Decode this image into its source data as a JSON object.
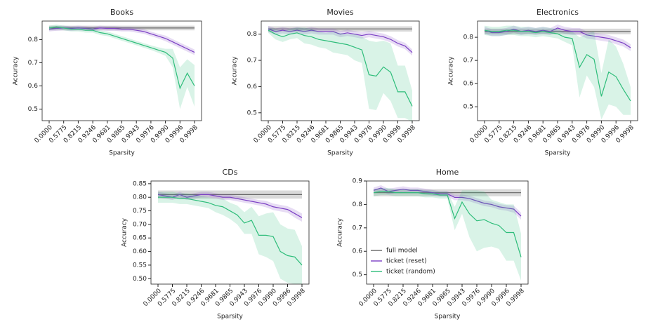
{
  "chart_data": [
    {
      "type": "line",
      "title": "Books",
      "xlabel": "Sparsity",
      "ylabel": "Accuracy",
      "categories": [
        "0.0000",
        null,
        "0.5775",
        null,
        "0.8215",
        null,
        "0.9246",
        null,
        "0.9681",
        null,
        "0.9865",
        null,
        "0.9943",
        null,
        "0.9976",
        null,
        "0.9990",
        null,
        "0.9996",
        null,
        "0.9998"
      ],
      "ylim": [
        0.45,
        0.88
      ],
      "yticks": [
        0.5,
        0.6,
        0.7,
        0.8
      ],
      "series": [
        {
          "color": "#666666",
          "values": [
            0.85,
            0.85,
            0.85,
            0.85,
            0.85,
            0.85,
            0.85,
            0.85,
            0.85,
            0.85,
            0.85,
            0.85,
            0.85,
            0.85,
            0.85,
            0.85,
            0.85,
            0.85,
            0.85,
            0.85,
            0.85
          ],
          "error": [
            0.01,
            0.01,
            0.01,
            0.01,
            0.01,
            0.01,
            0.01,
            0.01,
            0.01,
            0.01,
            0.01,
            0.01,
            0.01,
            0.01,
            0.01,
            0.01,
            0.01,
            0.01,
            0.01,
            0.01,
            0.01
          ]
        },
        {
          "color": "#7b3fc4",
          "values": [
            0.845,
            0.848,
            0.85,
            0.848,
            0.85,
            0.848,
            0.845,
            0.85,
            0.848,
            0.848,
            0.845,
            0.845,
            0.84,
            0.835,
            0.825,
            0.815,
            0.805,
            0.79,
            0.775,
            0.76,
            0.745
          ],
          "error": [
            0.01,
            0.01,
            0.01,
            0.01,
            0.01,
            0.01,
            0.01,
            0.01,
            0.01,
            0.01,
            0.01,
            0.01,
            0.01,
            0.01,
            0.01,
            0.01,
            0.012,
            0.012,
            0.012,
            0.012,
            0.012
          ]
        },
        {
          "color": "#2ebd7a",
          "values": [
            0.85,
            0.855,
            0.85,
            0.845,
            0.845,
            0.84,
            0.84,
            0.83,
            0.825,
            0.815,
            0.805,
            0.795,
            0.785,
            0.775,
            0.765,
            0.755,
            0.745,
            0.72,
            0.59,
            0.655,
            0.6
          ],
          "error": [
            0.01,
            0.01,
            0.01,
            0.01,
            0.01,
            0.01,
            0.01,
            0.01,
            0.01,
            0.01,
            0.01,
            0.01,
            0.01,
            0.01,
            0.01,
            0.012,
            0.015,
            0.04,
            0.09,
            0.06,
            0.09
          ]
        }
      ]
    },
    {
      "type": "line",
      "title": "Movies",
      "xlabel": "Sparsity",
      "ylabel": "Accuracy",
      "categories": [
        "0.0000",
        null,
        "0.5775",
        null,
        "0.8215",
        null,
        "0.9246",
        null,
        "0.9681",
        null,
        "0.9865",
        null,
        "0.9943",
        null,
        "0.9976",
        null,
        "0.9990",
        null,
        "0.9996",
        null,
        "0.9998"
      ],
      "ylim": [
        0.47,
        0.85
      ],
      "yticks": [
        0.5,
        0.6,
        0.7,
        0.8
      ],
      "series": [
        {
          "color": "#666666",
          "values": [
            0.82,
            0.82,
            0.82,
            0.82,
            0.82,
            0.82,
            0.82,
            0.82,
            0.82,
            0.82,
            0.82,
            0.82,
            0.82,
            0.82,
            0.82,
            0.82,
            0.82,
            0.82,
            0.82,
            0.82,
            0.82
          ],
          "error": [
            0.01,
            0.01,
            0.01,
            0.01,
            0.01,
            0.01,
            0.01,
            0.01,
            0.01,
            0.01,
            0.01,
            0.01,
            0.01,
            0.01,
            0.01,
            0.01,
            0.01,
            0.01,
            0.01,
            0.01,
            0.01
          ]
        },
        {
          "color": "#7b3fc4",
          "values": [
            0.82,
            0.81,
            0.815,
            0.81,
            0.815,
            0.81,
            0.815,
            0.81,
            0.81,
            0.81,
            0.8,
            0.805,
            0.8,
            0.795,
            0.8,
            0.795,
            0.79,
            0.78,
            0.765,
            0.755,
            0.73
          ],
          "error": [
            0.012,
            0.012,
            0.012,
            0.012,
            0.012,
            0.012,
            0.012,
            0.012,
            0.012,
            0.012,
            0.012,
            0.012,
            0.012,
            0.012,
            0.012,
            0.012,
            0.012,
            0.012,
            0.012,
            0.012,
            0.012
          ]
        },
        {
          "color": "#2ebd7a",
          "values": [
            0.815,
            0.8,
            0.79,
            0.8,
            0.805,
            0.795,
            0.79,
            0.78,
            0.775,
            0.77,
            0.765,
            0.76,
            0.75,
            0.74,
            0.645,
            0.64,
            0.675,
            0.655,
            0.58,
            0.58,
            0.525
          ],
          "error": [
            0.01,
            0.02,
            0.02,
            0.02,
            0.02,
            0.03,
            0.03,
            0.03,
            0.03,
            0.04,
            0.04,
            0.04,
            0.05,
            0.05,
            0.13,
            0.13,
            0.1,
            0.11,
            0.1,
            0.1,
            0.06
          ]
        }
      ]
    },
    {
      "type": "line",
      "title": "Electronics",
      "xlabel": "Sparsity",
      "ylabel": "Accuracy",
      "categories": [
        "0.0000",
        null,
        "0.5775",
        null,
        "0.8215",
        null,
        "0.9246",
        null,
        "0.9681",
        null,
        "0.9865",
        null,
        "0.9943",
        null,
        "0.9976",
        null,
        "0.9990",
        null,
        "0.9996",
        null,
        "0.9998"
      ],
      "ylim": [
        0.44,
        0.87
      ],
      "yticks": [
        0.5,
        0.6,
        0.7,
        0.8
      ],
      "series": [
        {
          "color": "#666666",
          "values": [
            0.825,
            0.825,
            0.825,
            0.825,
            0.825,
            0.825,
            0.825,
            0.825,
            0.825,
            0.825,
            0.825,
            0.825,
            0.825,
            0.825,
            0.825,
            0.825,
            0.825,
            0.825,
            0.825,
            0.825,
            0.825
          ],
          "error": [
            0.012,
            0.012,
            0.012,
            0.012,
            0.012,
            0.012,
            0.012,
            0.012,
            0.012,
            0.012,
            0.012,
            0.012,
            0.012,
            0.012,
            0.012,
            0.012,
            0.012,
            0.012,
            0.012,
            0.012,
            0.012
          ]
        },
        {
          "color": "#7b3fc4",
          "values": [
            0.83,
            0.82,
            0.82,
            0.825,
            0.835,
            0.825,
            0.83,
            0.825,
            0.83,
            0.825,
            0.84,
            0.83,
            0.825,
            0.825,
            0.81,
            0.805,
            0.8,
            0.795,
            0.785,
            0.775,
            0.755
          ],
          "error": [
            0.015,
            0.015,
            0.015,
            0.015,
            0.015,
            0.015,
            0.015,
            0.015,
            0.015,
            0.015,
            0.015,
            0.015,
            0.015,
            0.015,
            0.015,
            0.015,
            0.015,
            0.015,
            0.015,
            0.015,
            0.015
          ]
        },
        {
          "color": "#2ebd7a",
          "values": [
            0.83,
            0.825,
            0.825,
            0.83,
            0.83,
            0.825,
            0.825,
            0.82,
            0.825,
            0.82,
            0.815,
            0.8,
            0.795,
            0.67,
            0.725,
            0.705,
            0.545,
            0.65,
            0.63,
            0.575,
            0.525
          ],
          "error": [
            0.02,
            0.02,
            0.02,
            0.02,
            0.02,
            0.02,
            0.02,
            0.02,
            0.02,
            0.02,
            0.02,
            0.02,
            0.03,
            0.13,
            0.09,
            0.12,
            0.1,
            0.14,
            0.13,
            0.11,
            0.06
          ]
        }
      ]
    },
    {
      "type": "line",
      "title": "CDs",
      "xlabel": "Sparsity",
      "ylabel": "Accuracy",
      "categories": [
        "0.0000",
        null,
        "0.5775",
        null,
        "0.8215",
        null,
        "0.9246",
        null,
        "0.9681",
        null,
        "0.9865",
        null,
        "0.9943",
        null,
        "0.9976",
        null,
        "0.9990",
        null,
        "0.9996",
        null,
        "0.9998"
      ],
      "ylim": [
        0.48,
        0.86
      ],
      "yticks": [
        {
          "value": 0.5,
          "label": "0.50"
        },
        0.55,
        {
          "value": 0.6,
          "label": "0.60"
        },
        0.65,
        {
          "value": 0.7,
          "label": "0.70"
        },
        0.75,
        {
          "value": 0.8,
          "label": "0.80"
        },
        0.85
      ],
      "series": [
        {
          "color": "#666666",
          "values": [
            0.81,
            0.81,
            0.81,
            0.81,
            0.81,
            0.81,
            0.81,
            0.81,
            0.81,
            0.81,
            0.81,
            0.81,
            0.81,
            0.81,
            0.81,
            0.81,
            0.81,
            0.81,
            0.81,
            0.81,
            0.81
          ],
          "error": [
            0.015,
            0.015,
            0.015,
            0.015,
            0.015,
            0.015,
            0.015,
            0.015,
            0.015,
            0.015,
            0.015,
            0.015,
            0.015,
            0.015,
            0.015,
            0.015,
            0.015,
            0.015,
            0.015,
            0.015,
            0.015
          ]
        },
        {
          "color": "#7b3fc4",
          "values": [
            0.81,
            0.805,
            0.8,
            0.81,
            0.8,
            0.805,
            0.81,
            0.81,
            0.805,
            0.8,
            0.8,
            0.795,
            0.79,
            0.785,
            0.78,
            0.775,
            0.765,
            0.76,
            0.755,
            0.74,
            0.725
          ],
          "error": [
            0.01,
            0.01,
            0.01,
            0.01,
            0.01,
            0.01,
            0.01,
            0.01,
            0.01,
            0.01,
            0.01,
            0.01,
            0.01,
            0.01,
            0.01,
            0.012,
            0.012,
            0.012,
            0.012,
            0.015,
            0.015
          ]
        },
        {
          "color": "#2ebd7a",
          "values": [
            0.8,
            0.8,
            0.8,
            0.795,
            0.795,
            0.79,
            0.785,
            0.78,
            0.77,
            0.765,
            0.75,
            0.735,
            0.705,
            0.715,
            0.66,
            0.66,
            0.655,
            0.6,
            0.585,
            0.58,
            0.55
          ],
          "error": [
            0.02,
            0.02,
            0.02,
            0.02,
            0.02,
            0.02,
            0.02,
            0.02,
            0.025,
            0.03,
            0.03,
            0.035,
            0.04,
            0.05,
            0.07,
            0.08,
            0.09,
            0.1,
            0.1,
            0.1,
            0.07
          ]
        }
      ]
    },
    {
      "type": "line",
      "title": "Home",
      "xlabel": "Sparsity",
      "ylabel": "Accuracy",
      "legend": "lower left",
      "categories": [
        "0.0000",
        null,
        "0.5775",
        null,
        "0.8215",
        null,
        "0.9246",
        null,
        "0.9681",
        null,
        "0.9865",
        null,
        "0.9943",
        null,
        "0.9976",
        null,
        "0.9990",
        null,
        "0.9996",
        null,
        "0.9998"
      ],
      "ylim": [
        0.46,
        0.9
      ],
      "yticks": [
        0.5,
        0.6,
        0.7,
        0.8,
        0.9
      ],
      "series": [
        {
          "name": "full model",
          "color": "#666666",
          "values": [
            0.85,
            0.85,
            0.85,
            0.85,
            0.85,
            0.85,
            0.85,
            0.85,
            0.85,
            0.85,
            0.85,
            0.85,
            0.85,
            0.85,
            0.85,
            0.85,
            0.85,
            0.85,
            0.85,
            0.85,
            0.85
          ],
          "error": [
            0.015,
            0.015,
            0.015,
            0.015,
            0.015,
            0.015,
            0.015,
            0.015,
            0.015,
            0.015,
            0.015,
            0.015,
            0.015,
            0.015,
            0.015,
            0.015,
            0.015,
            0.015,
            0.015,
            0.015,
            0.015
          ]
        },
        {
          "name": "ticket (reset)",
          "color": "#7b3fc4",
          "values": [
            0.86,
            0.87,
            0.855,
            0.86,
            0.865,
            0.86,
            0.86,
            0.855,
            0.85,
            0.845,
            0.845,
            0.83,
            0.83,
            0.825,
            0.815,
            0.805,
            0.8,
            0.79,
            0.785,
            0.78,
            0.75
          ],
          "error": [
            0.012,
            0.012,
            0.012,
            0.012,
            0.012,
            0.012,
            0.012,
            0.012,
            0.012,
            0.012,
            0.012,
            0.012,
            0.012,
            0.012,
            0.012,
            0.012,
            0.012,
            0.012,
            0.012,
            0.015,
            0.015
          ]
        },
        {
          "name": "ticket (random)",
          "color": "#2ebd7a",
          "values": [
            0.85,
            0.855,
            0.855,
            0.85,
            0.85,
            0.85,
            0.85,
            0.845,
            0.845,
            0.84,
            0.84,
            0.74,
            0.81,
            0.76,
            0.73,
            0.735,
            0.72,
            0.71,
            0.68,
            0.68,
            0.575
          ],
          "error": [
            0.015,
            0.015,
            0.015,
            0.015,
            0.015,
            0.015,
            0.015,
            0.015,
            0.015,
            0.015,
            0.015,
            0.05,
            0.05,
            0.1,
            0.13,
            0.12,
            0.1,
            0.1,
            0.12,
            0.12,
            0.1
          ]
        }
      ]
    }
  ]
}
